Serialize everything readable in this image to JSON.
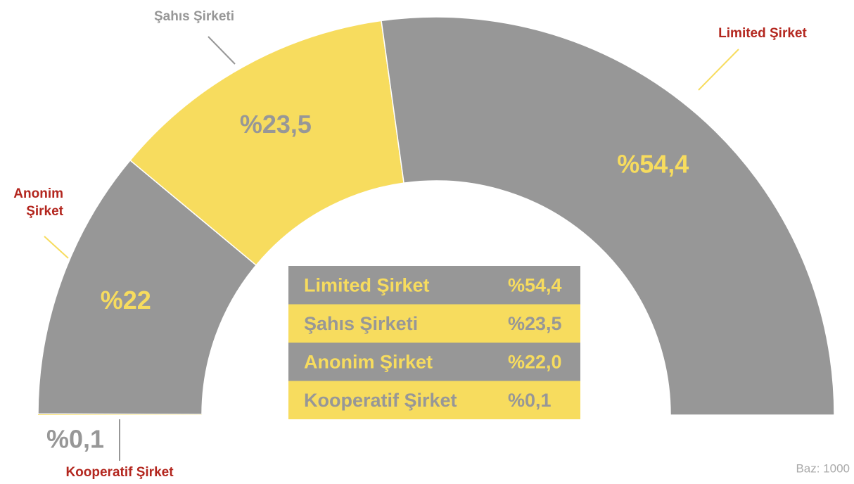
{
  "chart_data": {
    "type": "semi-donut",
    "categories": [
      "Kooperatif Şirket",
      "Anonim Şirket",
      "Şahıs Şirketi",
      "Limited Şirket"
    ],
    "values": [
      0.1,
      22,
      23.5,
      54.4
    ],
    "value_labels": [
      "%0,1",
      "%22",
      "%23,5",
      "%54,4"
    ],
    "colors": [
      "#f7dc5e",
      "#979797",
      "#f7dc5e",
      "#979797"
    ],
    "table": {
      "order": [
        3,
        2,
        1,
        0
      ],
      "value_labels": [
        "%54,4",
        "%23,5",
        "%22,0",
        "%0,1"
      ]
    },
    "note": "Baz: 1000"
  }
}
